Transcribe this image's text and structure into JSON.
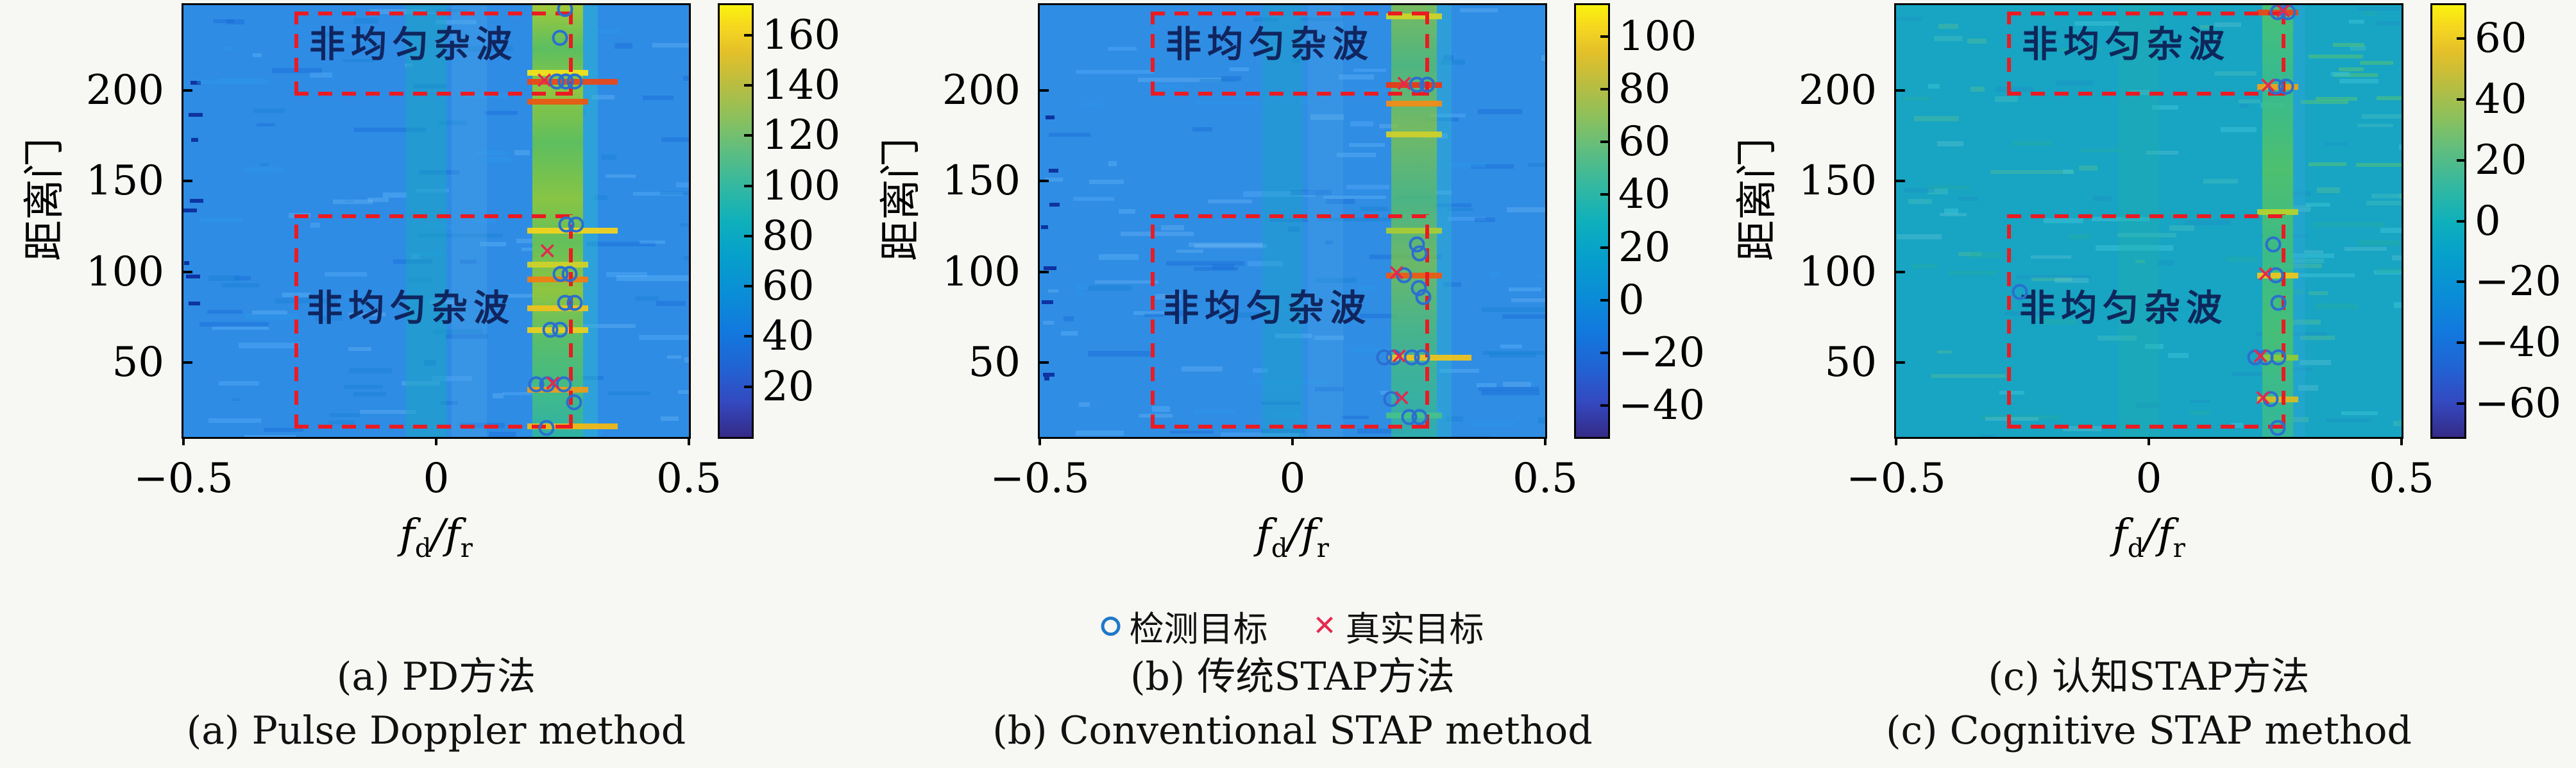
{
  "figure": {
    "ylabel": "距离门",
    "xlabel": {
      "numerator_base": "f",
      "numerator_sub": "d",
      "separator": "/",
      "denominator_base": "f",
      "denominator_sub": "r"
    },
    "region_label": "非均匀杂波",
    "legend": {
      "items": [
        {
          "marker": "circle",
          "glyph": "",
          "label": "检测目标"
        },
        {
          "marker": "x",
          "glyph": "✕",
          "label": "真实目标"
        }
      ]
    },
    "colors": {
      "detected_marker": "#2a6fd0",
      "true_marker": "#e4294d",
      "dashed_box": "#ea1b22",
      "region_label_text": "#0d1950",
      "panel_bg_blue": "#2e8ce5",
      "panel_bg_teal": "#18a4c3"
    }
  },
  "chart_data": [
    {
      "type": "heatmap",
      "title_zh": "(a) PD方法",
      "title_en": "(a) Pulse Doppler method",
      "xlabel": "fd/fr",
      "ylabel": "距离门",
      "x_range": [
        -0.5,
        0.5
      ],
      "x_ticks": [
        -0.5,
        0,
        0.5
      ],
      "y_range": [
        9,
        247
      ],
      "y_ticks": [
        50,
        100,
        150,
        200
      ],
      "colorbar": {
        "range": [
          0,
          172
        ],
        "ticks": [
          160,
          140,
          120,
          100,
          80,
          60,
          40,
          20
        ]
      },
      "background_color": "#2e8ce5",
      "clutter_ridge": {
        "x0": 0.19,
        "x1": 0.29,
        "edge_strip": {
          "x0": 0.29,
          "x1": 0.32,
          "color": "rgba(44,186,205,0.45)"
        },
        "streaks": [
          {
            "rg": 210,
            "color": "#f2e11c"
          },
          {
            "rg": 205,
            "color": "#e8481a",
            "wide": 1
          },
          {
            "rg": 194,
            "color": "#e85a14"
          },
          {
            "rg": 123,
            "color": "#f2d31e",
            "wide": 1
          },
          {
            "rg": 104,
            "color": "#cfd22a"
          },
          {
            "rg": 96,
            "color": "#ef7d16"
          },
          {
            "rg": 80,
            "color": "#eec31d"
          },
          {
            "rg": 68,
            "color": "#e8cf22"
          },
          {
            "rg": 35,
            "color": "#eb9c1b"
          },
          {
            "rg": 15,
            "color": "#f0b816",
            "wide": 1
          }
        ]
      },
      "secondary_bands": [
        {
          "x0": -0.06,
          "x1": 0.02,
          "color": "rgba(23,167,192,0.50)"
        },
        {
          "x0": 0.03,
          "x1": 0.1,
          "color": "rgba(80,170,230,0.30)"
        }
      ],
      "clutter_regions": [
        {
          "label": "非均匀杂波",
          "x0": -0.28,
          "x1": 0.27,
          "fy0": 0.015,
          "fy1": 0.21,
          "label_fx": 0.455,
          "label_fy": 0.085
        },
        {
          "label": "非均匀杂波",
          "x0": -0.28,
          "x1": 0.27,
          "fy0": 0.485,
          "fy1": 0.98,
          "label_fx": 0.45,
          "label_fy": 0.695
        }
      ],
      "detected_targets": [
        [
          0.255,
          245
        ],
        [
          0.245,
          229
        ],
        [
          0.238,
          205
        ],
        [
          0.256,
          205
        ],
        [
          0.274,
          205
        ],
        [
          0.258,
          126
        ],
        [
          0.277,
          126
        ],
        [
          0.246,
          99
        ],
        [
          0.264,
          99
        ],
        [
          0.255,
          83
        ],
        [
          0.274,
          83
        ],
        [
          0.226,
          68
        ],
        [
          0.245,
          68
        ],
        [
          0.198,
          38
        ],
        [
          0.219,
          38
        ],
        [
          0.253,
          38
        ],
        [
          0.273,
          28
        ],
        [
          0.218,
          14
        ]
      ],
      "true_targets": [
        [
          0.214,
          205
        ],
        [
          0.22,
          111
        ],
        [
          0.231,
          38
        ]
      ]
    },
    {
      "type": "heatmap",
      "title_zh": "(b) 传统STAP方法",
      "title_en": "(b) Conventional STAP method",
      "xlabel": "fd/fr",
      "ylabel": "距离门",
      "x_range": [
        -0.5,
        0.5
      ],
      "x_ticks": [
        -0.5,
        0,
        0.5
      ],
      "y_range": [
        9,
        247
      ],
      "y_ticks": [
        50,
        100,
        150,
        200
      ],
      "colorbar": {
        "range": [
          -52,
          112
        ],
        "ticks": [
          100,
          80,
          60,
          40,
          20,
          0,
          -20,
          -40
        ]
      },
      "background_color": "#2f8de4",
      "clutter_ridge": {
        "x0": 0.195,
        "x1": 0.285,
        "edge_strip": {
          "x0": 0.285,
          "x1": 0.315,
          "color": "rgba(44,186,205,0.38)"
        },
        "streaks": [
          {
            "rg": 241,
            "color": "#cdd22a"
          },
          {
            "rg": 203,
            "color": "#e83a18"
          },
          {
            "rg": 193,
            "color": "#ef8c18"
          },
          {
            "rg": 176,
            "color": "#cdd02c"
          },
          {
            "rg": 123,
            "color": "#a8cc36"
          },
          {
            "rg": 98,
            "color": "#ea5a16"
          },
          {
            "rg": 53,
            "color": "#eec31d",
            "wide": 1
          },
          {
            "rg": 21,
            "color": "#46c08c"
          }
        ]
      },
      "secondary_bands": [
        {
          "x0": -0.06,
          "x1": 0.02,
          "color": "rgba(23,167,192,0.38)"
        },
        {
          "x0": 0.03,
          "x1": 0.1,
          "color": "rgba(80,170,230,0.25)"
        }
      ],
      "clutter_regions": [
        {
          "label": "非均匀杂波",
          "x0": -0.28,
          "x1": 0.27,
          "fy0": 0.015,
          "fy1": 0.21,
          "label_fx": 0.455,
          "label_fy": 0.085
        },
        {
          "label": "非均匀杂波",
          "x0": -0.28,
          "x1": 0.27,
          "fy0": 0.485,
          "fy1": 0.98,
          "label_fx": 0.45,
          "label_fy": 0.695
        }
      ],
      "detected_targets": [
        [
          0.246,
          203
        ],
        [
          0.266,
          203
        ],
        [
          0.246,
          115
        ],
        [
          0.251,
          110
        ],
        [
          0.221,
          98
        ],
        [
          0.25,
          91
        ],
        [
          0.259,
          86
        ],
        [
          0.181,
          53
        ],
        [
          0.201,
          53
        ],
        [
          0.236,
          53
        ],
        [
          0.256,
          53
        ],
        [
          0.196,
          30
        ],
        [
          0.231,
          20
        ],
        [
          0.251,
          20
        ]
      ],
      "true_targets": [
        [
          0.221,
          203
        ],
        [
          0.206,
          99
        ],
        [
          0.211,
          53
        ],
        [
          0.216,
          30
        ]
      ]
    },
    {
      "type": "heatmap",
      "title_zh": "(c) 认知STAP方法",
      "title_en": "(c) Cognitive STAP method",
      "xlabel": "fd/fr",
      "ylabel": "距离门",
      "x_range": [
        -0.5,
        0.5
      ],
      "x_ticks": [
        -0.5,
        0,
        0.5
      ],
      "y_range": [
        9,
        247
      ],
      "y_ticks": [
        50,
        100,
        150,
        200
      ],
      "colorbar": {
        "range": [
          -71,
          71
        ],
        "ticks": [
          60,
          40,
          20,
          0,
          -20,
          -40,
          -60
        ]
      },
      "background_color": "#18a4c3",
      "clutter_ridge": {
        "x0": 0.225,
        "x1": 0.285,
        "edge_strip": {
          "x0": 0.285,
          "x1": 0.31,
          "color": "rgba(60,170,225,0.30)"
        },
        "streaks": [
          {
            "rg": 243,
            "color": "#e84818"
          },
          {
            "rg": 202,
            "color": "#eda01a"
          },
          {
            "rg": 133,
            "color": "#b3d22e"
          },
          {
            "rg": 98,
            "color": "#ecc51e"
          },
          {
            "rg": 53,
            "color": "#8cc93a"
          },
          {
            "rg": 30,
            "color": "#d6bb26"
          }
        ]
      },
      "secondary_bands": [
        {
          "x0": -0.06,
          "x1": 0.02,
          "color": "rgba(30,180,160,0.25)"
        }
      ],
      "clutter_regions": [
        {
          "label": "非均匀杂波",
          "x0": -0.28,
          "x1": 0.27,
          "fy0": 0.015,
          "fy1": 0.21,
          "label_fx": 0.455,
          "label_fy": 0.085
        },
        {
          "label": "非均匀杂波",
          "x0": -0.28,
          "x1": 0.27,
          "fy0": 0.485,
          "fy1": 0.98,
          "label_fx": 0.45,
          "label_fy": 0.695
        }
      ],
      "detected_targets": [
        [
          0.255,
          243
        ],
        [
          0.275,
          243
        ],
        [
          0.251,
          202
        ],
        [
          0.271,
          202
        ],
        [
          0.246,
          115
        ],
        [
          0.251,
          98
        ],
        [
          0.256,
          83
        ],
        [
          0.211,
          53
        ],
        [
          0.231,
          53
        ],
        [
          0.256,
          53
        ],
        [
          0.241,
          30
        ],
        [
          0.255,
          14
        ],
        [
          -0.255,
          89
        ]
      ],
      "true_targets": [
        [
          0.266,
          243
        ],
        [
          0.236,
          202
        ],
        [
          0.231,
          98
        ],
        [
          0.221,
          53
        ],
        [
          0.226,
          30
        ]
      ]
    }
  ]
}
